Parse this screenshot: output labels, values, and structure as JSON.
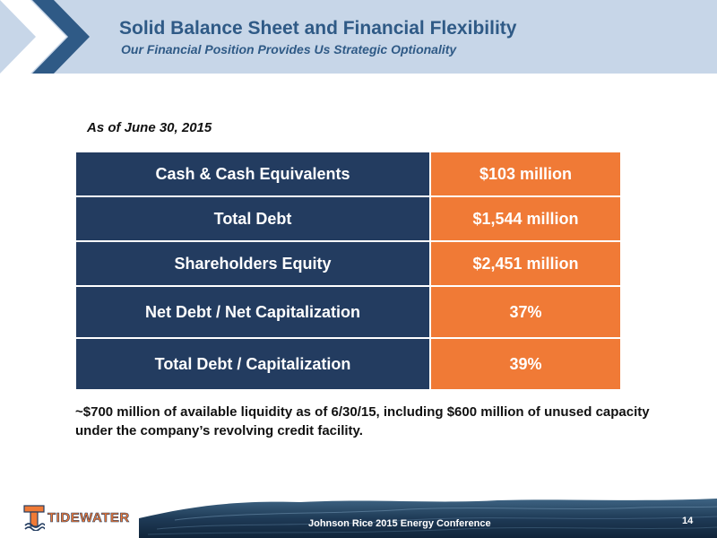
{
  "header": {
    "title": "Solid Balance Sheet and Financial Flexibility",
    "subtitle": "Our Financial Position Provides Us Strategic Optionality"
  },
  "as_of": "As of June 30, 2015",
  "table": {
    "rows": [
      {
        "label": "Cash & Cash Equivalents",
        "value": "$103 million"
      },
      {
        "label": "Total Debt",
        "value": "$1,544 million"
      },
      {
        "label": "Shareholders Equity",
        "value": "$2,451 million"
      },
      {
        "label": "Net Debt / Net Capitalization",
        "value": "37%"
      },
      {
        "label": "Total Debt / Capitalization",
        "value": "39%"
      }
    ]
  },
  "note": "~$700 million of available liquidity as of 6/30/15, including $600 million of unused capacity under the company’s revolving credit facility.",
  "footer": {
    "logo_text": "TIDEWATER",
    "conference": "Johnson Rice 2015 Energy Conference",
    "page_number": "14"
  },
  "colors": {
    "header_band": "#c7d6e8",
    "title": "#2f5a86",
    "table_label_bg": "#233c60",
    "table_value_bg": "#f07a36"
  }
}
